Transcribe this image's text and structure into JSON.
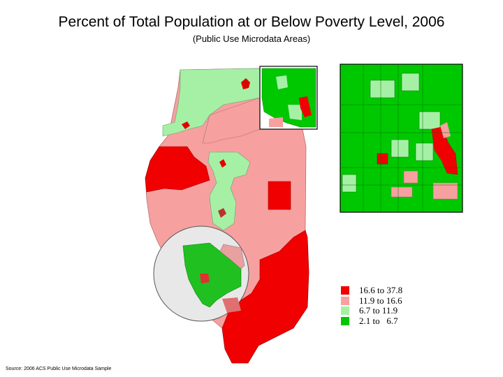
{
  "title": "Percent of Total Population at or Below Poverty Level, 2006",
  "subtitle": "(Public Use Microdata Areas)",
  "source": "Source: 2006 ACS Public Use Microdata Sample",
  "legend": [
    {
      "label": "16.6 to 37.8",
      "color": "#f00000"
    },
    {
      "label": "11.9 to 16.6",
      "color": "#f7a0a0"
    },
    {
      "label": "6.7 to 11.9",
      "color": "#a6f0a6"
    },
    {
      "label": "2.1 to   6.7",
      "color": "#00c800"
    }
  ],
  "colors": {
    "high": "#f00000",
    "mid_high": "#f7a0a0",
    "mid_low": "#a6f0a6",
    "low": "#00c800",
    "inset_highlight": "#e8e8e8"
  }
}
